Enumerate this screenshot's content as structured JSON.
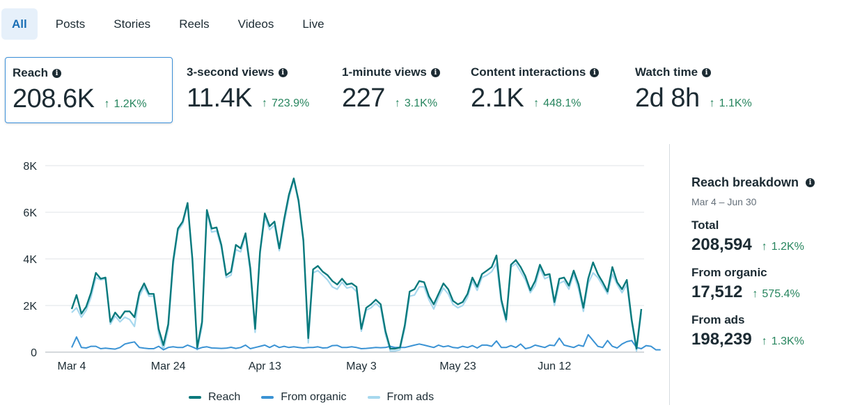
{
  "tabs": [
    "All",
    "Posts",
    "Stories",
    "Reels",
    "Videos",
    "Live"
  ],
  "metrics": [
    {
      "label": "Reach",
      "value": "208.6K",
      "delta": "1.2K%"
    },
    {
      "label": "3-second views",
      "value": "11.4K",
      "delta": "723.9%"
    },
    {
      "label": "1-minute views",
      "value": "227",
      "delta": "3.1K%"
    },
    {
      "label": "Content interactions",
      "value": "2.1K",
      "delta": "448.1%"
    },
    {
      "label": "Watch time",
      "value": "2d 8h",
      "delta": "1.1K%"
    }
  ],
  "colors": {
    "reach": "#08797c",
    "organic": "#3b93d4",
    "ads": "#a7d8ee",
    "positive": "#27855e",
    "accent": "#3b8fd9"
  },
  "chart_data": {
    "type": "line",
    "title": "",
    "xlabel": "",
    "ylabel": "",
    "ylim": [
      0,
      8000
    ],
    "yticks": [
      0,
      2000,
      4000,
      6000,
      8000
    ],
    "ytick_labels": [
      "0",
      "2K",
      "4K",
      "6K",
      "8K"
    ],
    "xtick_labels": [
      "Mar 4",
      "Mar 24",
      "Apr 13",
      "May 3",
      "May 23",
      "Jun 12"
    ],
    "xtick_index": [
      0,
      20,
      40,
      60,
      80,
      100
    ],
    "x_start": "Mar 4",
    "x_end": "Jun 30",
    "series": [
      {
        "name": "Reach",
        "values": [
          1850,
          2450,
          1650,
          1950,
          2550,
          3400,
          3150,
          3200,
          1300,
          1700,
          1450,
          1750,
          1750,
          1500,
          2550,
          2950,
          2500,
          2500,
          1000,
          300,
          1200,
          3900,
          5300,
          5600,
          6400,
          4000,
          200,
          1300,
          6100,
          5300,
          5350,
          4600,
          3300,
          3450,
          4600,
          4450,
          5100,
          3600,
          1000,
          4300,
          5950,
          5400,
          5600,
          4450,
          5700,
          6750,
          7450,
          6500,
          4800,
          600,
          3550,
          3700,
          3450,
          3300,
          3050,
          2900,
          3150,
          2900,
          2950,
          2800,
          1000,
          1900,
          2050,
          2250,
          2050,
          900,
          150,
          150,
          200,
          1150,
          2600,
          2700,
          3050,
          3000,
          2400,
          2050,
          2500,
          2950,
          2700,
          2200,
          2050,
          2150,
          2500,
          3200,
          2800,
          3350,
          3500,
          3650,
          4150,
          2250,
          1400,
          3750,
          3950,
          3650,
          3250,
          2650,
          3050,
          3750,
          3300,
          3350,
          2150,
          3150,
          3200,
          2850,
          3500,
          2900,
          1900,
          3150,
          3850,
          3350,
          3000,
          2600,
          3650,
          3000,
          2700,
          3100,
          1400,
          150,
          1850
        ]
      },
      {
        "name": "From organic",
        "values": [
          200,
          650,
          200,
          180,
          250,
          250,
          150,
          170,
          150,
          130,
          200,
          350,
          400,
          440,
          200,
          170,
          150,
          150,
          250,
          100,
          200,
          230,
          200,
          200,
          300,
          220,
          130,
          200,
          230,
          180,
          170,
          160,
          170,
          210,
          160,
          200,
          300,
          150,
          200,
          250,
          300,
          200,
          300,
          200,
          250,
          200,
          230,
          200,
          180,
          200,
          200,
          230,
          180,
          190,
          280,
          290,
          200,
          200,
          230,
          200,
          150,
          160,
          180,
          200,
          190,
          200,
          250,
          200,
          200,
          200,
          250,
          300,
          350,
          300,
          250,
          200,
          300,
          230,
          270,
          200,
          180,
          250,
          200,
          280,
          180,
          300,
          300,
          250,
          480,
          200,
          200,
          280,
          200,
          350,
          150,
          200,
          300,
          250,
          200,
          300,
          280,
          600,
          300,
          250,
          200,
          300,
          250,
          750,
          500,
          250,
          200,
          500,
          250,
          180,
          350,
          450,
          500,
          200,
          150,
          280,
          250,
          100,
          100
        ]
      },
      {
        "name": "From ads",
        "values": [
          1700,
          1900,
          1500,
          1800,
          2350,
          3200,
          3100,
          3150,
          1200,
          1550,
          1300,
          1500,
          1400,
          1100,
          2400,
          2800,
          2400,
          2400,
          800,
          100,
          1000,
          3700,
          5200,
          5500,
          6300,
          3900,
          100,
          1100,
          6000,
          5150,
          5200,
          4500,
          3200,
          3300,
          4400,
          4300,
          5000,
          3400,
          850,
          4200,
          5800,
          5250,
          5450,
          4350,
          5500,
          6600,
          7400,
          6400,
          4700,
          400,
          3400,
          3500,
          3300,
          3100,
          2800,
          2700,
          3000,
          2750,
          2800,
          2600,
          900,
          1800,
          1900,
          2100,
          1900,
          750,
          50,
          50,
          100,
          1000,
          2400,
          2450,
          2800,
          2800,
          2250,
          1850,
          2350,
          2750,
          2500,
          2050,
          1900,
          2000,
          2350,
          3050,
          2650,
          3200,
          3300,
          3450,
          3800,
          2100,
          1300,
          3650,
          3800,
          3450,
          3100,
          2550,
          2850,
          3600,
          3150,
          3250,
          2000,
          2950,
          3050,
          2700,
          3350,
          2700,
          1750,
          2950,
          3400,
          3200,
          2850,
          2500,
          3350,
          2900,
          2550,
          2900,
          1300,
          50,
          1700
        ]
      }
    ],
    "legend": [
      "Reach",
      "From organic",
      "From ads"
    ],
    "legend_position": "bottom"
  },
  "breakdown": {
    "title": "Reach breakdown",
    "date_range": "Mar 4 – Jun 30",
    "rows": [
      {
        "label": "Total",
        "value": "208,594",
        "delta": "1.2K%"
      },
      {
        "label": "From organic",
        "value": "17,512",
        "delta": "575.4%"
      },
      {
        "label": "From ads",
        "value": "198,239",
        "delta": "1.3K%"
      }
    ]
  },
  "icons": {
    "info": "i",
    "up_arrow": "↑"
  }
}
